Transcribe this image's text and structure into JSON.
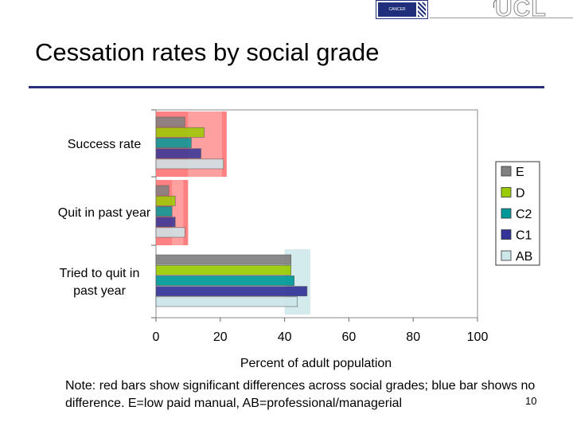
{
  "header": {
    "logo_text": "CANCER RESEARCH UK",
    "ucl_text": "UCL"
  },
  "slide": {
    "title": "Cessation rates by social grade",
    "note": "Note: red bars show significant differences across social grades; blue bar shows no difference. E=low paid manual, AB=professional/managerial",
    "page_number": "10"
  },
  "colors": {
    "E": "#808080",
    "D": "#99cc00",
    "C2": "#009999",
    "C1": "#333399",
    "AB": "#cce6ea",
    "red_highlight": "#ff6b6b",
    "blue_highlight": "#cfe9ec",
    "title_rule": "#2a2f7a"
  },
  "chart_data": {
    "type": "bar",
    "orientation": "horizontal",
    "categories": [
      "Success rate",
      "Quit in past year",
      "Tried to quit in past year"
    ],
    "category_lines": [
      [
        "Success rate"
      ],
      [
        "Quit in past year"
      ],
      [
        "Tried to quit in",
        "past year"
      ]
    ],
    "series": [
      {
        "name": "E",
        "values": [
          9,
          4,
          42
        ]
      },
      {
        "name": "D",
        "values": [
          15,
          6,
          42
        ]
      },
      {
        "name": "C2",
        "values": [
          11,
          5,
          43
        ]
      },
      {
        "name": "C1",
        "values": [
          14,
          6,
          47
        ]
      },
      {
        "name": "AB",
        "values": [
          21,
          9,
          44
        ]
      }
    ],
    "highlights": [
      "red",
      "red",
      "blue"
    ],
    "legend_order": [
      "E",
      "D",
      "C2",
      "C1",
      "AB"
    ],
    "legend_position": "right",
    "xlabel": "Percent of adult population",
    "xlim": [
      0,
      100
    ],
    "xticks": [
      0,
      20,
      40,
      60,
      80,
      100
    ]
  }
}
